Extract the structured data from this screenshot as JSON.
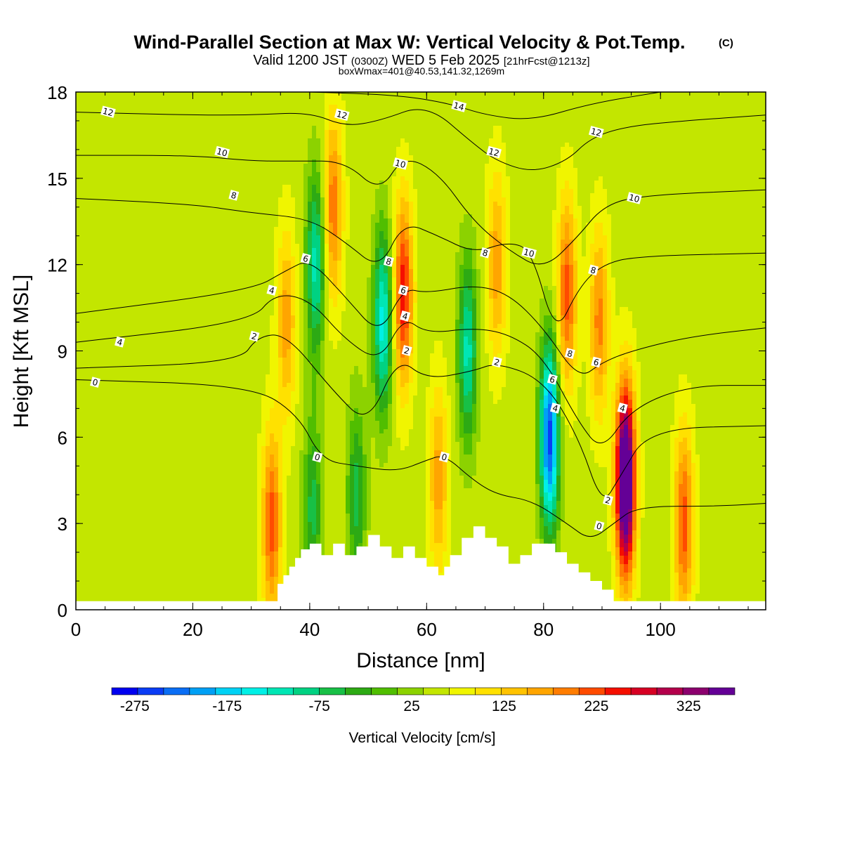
{
  "title": {
    "main": "Wind-Parallel Section at Max W: Vertical Velocity & Pot.Temp.",
    "copyright": "(C)",
    "valid_prefix": "Valid 1200 JST",
    "valid_utc": "(0300Z)",
    "valid_date": "WED 5 Feb 2025",
    "forecast": "[21hrFcst@1213z]",
    "box": "boxWmax=401@40.53,141.32,1269m"
  },
  "colors": {
    "palette": [
      "#0000f0",
      "#0a3cf5",
      "#0a6ef5",
      "#00a0f5",
      "#00d2f5",
      "#00f0e6",
      "#00e6b4",
      "#00d282",
      "#18c046",
      "#2daa14",
      "#50be00",
      "#8cd200",
      "#c3e600",
      "#f0f500",
      "#ffe100",
      "#ffc300",
      "#ffa500",
      "#ff7d00",
      "#ff4b00",
      "#f50f00",
      "#d70023",
      "#b4004b",
      "#8c006e",
      "#640096"
    ],
    "contour_line": "#000000"
  },
  "chart_data": {
    "type": "heatmap",
    "xlabel": "Distance [nm]",
    "ylabel": "Height [Kft MSL]",
    "xlim": [
      0,
      118
    ],
    "ylim": [
      0,
      18
    ],
    "x_ticks": [
      "0",
      "20",
      "40",
      "60",
      "80",
      "100"
    ],
    "y_ticks": [
      "0",
      "3",
      "6",
      "9",
      "12",
      "15",
      "18"
    ],
    "colorbar": {
      "label": "Vertical Velocity [cm/s]",
      "tick_labels": [
        "-275",
        "-175",
        "-75",
        "25",
        "125",
        "225",
        "325"
      ],
      "min": -300,
      "max": 375,
      "step": 25
    },
    "vertical_velocity_features": [
      {
        "x": 33.5,
        "z": 3.0,
        "w": 150
      },
      {
        "x": 36,
        "z": 10,
        "w": 100
      },
      {
        "x": 40.5,
        "z": 3.5,
        "w": -100
      },
      {
        "x": 41,
        "z": 12,
        "w": -150
      },
      {
        "x": 44,
        "z": 14,
        "w": 130
      },
      {
        "x": 48,
        "z": 4,
        "w": -100
      },
      {
        "x": 52.5,
        "z": 10,
        "w": -175
      },
      {
        "x": 56,
        "z": 11,
        "w": 180
      },
      {
        "x": 62,
        "z": 4.5,
        "w": 100
      },
      {
        "x": 67,
        "z": 9,
        "w": -150
      },
      {
        "x": 72,
        "z": 12,
        "w": 100
      },
      {
        "x": 81,
        "z": 6,
        "w": -275
      },
      {
        "x": 84,
        "z": 11,
        "w": 150
      },
      {
        "x": 89.5,
        "z": 10,
        "w": 120
      },
      {
        "x": 94,
        "z": 4.5,
        "w": 375
      },
      {
        "x": 104,
        "z": 3,
        "w": 150
      }
    ],
    "terrain": {
      "x": [
        0,
        33.5,
        34.5,
        35.5,
        36.5,
        37.5,
        38.5,
        40,
        42,
        44,
        46,
        48,
        50,
        52,
        54,
        56,
        58,
        60,
        62,
        63,
        64,
        66,
        68,
        70,
        72,
        74,
        76,
        78,
        80,
        82,
        84,
        86,
        88,
        90,
        92,
        118
      ],
      "z": [
        0.3,
        0.3,
        0.9,
        1.2,
        1.5,
        1.8,
        2.1,
        2.3,
        1.9,
        2.3,
        1.9,
        2.2,
        2.6,
        2.2,
        1.8,
        2.2,
        1.8,
        1.5,
        1.2,
        1.5,
        1.9,
        2.5,
        2.9,
        2.5,
        2.2,
        1.6,
        1.9,
        2.3,
        2.3,
        2.0,
        1.6,
        1.3,
        1.0,
        0.7,
        0.3,
        0.3
      ]
    },
    "potential_temperature_contours": [
      {
        "value": "0",
        "points": [
          [
            0,
            8.0
          ],
          [
            30,
            7.8
          ],
          [
            38,
            6.8
          ],
          [
            42,
            5.2
          ],
          [
            48,
            5.0
          ],
          [
            55,
            4.8
          ],
          [
            60,
            5.2
          ],
          [
            63,
            5.4
          ],
          [
            68,
            4.5
          ],
          [
            72,
            4.0
          ],
          [
            78,
            3.8
          ],
          [
            84,
            3.0
          ],
          [
            88,
            2.4
          ],
          [
            92,
            3.0
          ],
          [
            96,
            3.6
          ],
          [
            110,
            3.6
          ],
          [
            118,
            3.7
          ]
        ]
      },
      {
        "value": "2",
        "points": [
          [
            0,
            8.4
          ],
          [
            28,
            8.6
          ],
          [
            31,
            9.5
          ],
          [
            36,
            9.6
          ],
          [
            44,
            7.6
          ],
          [
            50,
            6.4
          ],
          [
            55,
            8.8
          ],
          [
            60,
            8.0
          ],
          [
            68,
            8.3
          ],
          [
            72,
            8.6
          ],
          [
            80,
            8.0
          ],
          [
            86,
            6.0
          ],
          [
            90,
            3.6
          ],
          [
            93,
            4.6
          ],
          [
            98,
            6.3
          ],
          [
            118,
            6.4
          ]
        ]
      },
      {
        "value": "4",
        "points": [
          [
            0,
            9.3
          ],
          [
            30,
            10.0
          ],
          [
            34,
            11.0
          ],
          [
            40,
            10.8
          ],
          [
            46,
            9.4
          ],
          [
            52,
            8.6
          ],
          [
            56,
            10.2
          ],
          [
            60,
            9.6
          ],
          [
            68,
            9.8
          ],
          [
            74,
            9.6
          ],
          [
            80,
            8.8
          ],
          [
            86,
            6.5
          ],
          [
            90,
            5.5
          ],
          [
            95,
            7.0
          ],
          [
            105,
            7.8
          ],
          [
            118,
            7.8
          ]
        ]
      },
      {
        "value": "6",
        "points": [
          [
            0,
            10.3
          ],
          [
            30,
            11.1
          ],
          [
            36,
            11.8
          ],
          [
            40,
            12.2
          ],
          [
            46,
            10.9
          ],
          [
            52,
            9.5
          ],
          [
            56,
            11.2
          ],
          [
            60,
            11.0
          ],
          [
            68,
            11.3
          ],
          [
            74,
            11.0
          ],
          [
            80,
            9.8
          ],
          [
            86,
            8.0
          ],
          [
            90,
            8.6
          ],
          [
            95,
            9.0
          ],
          [
            105,
            9.5
          ],
          [
            118,
            9.8
          ]
        ]
      },
      {
        "value": "8",
        "points": [
          [
            0,
            14.3
          ],
          [
            20,
            14.1
          ],
          [
            30,
            13.8
          ],
          [
            40,
            13.6
          ],
          [
            46,
            12.8
          ],
          [
            52,
            11.8
          ],
          [
            56,
            13.5
          ],
          [
            62,
            13.0
          ],
          [
            68,
            12.4
          ],
          [
            74,
            12.8
          ],
          [
            78,
            12.5
          ],
          [
            82,
            9.5
          ],
          [
            86,
            11.2
          ],
          [
            90,
            12.0
          ],
          [
            96,
            12.3
          ],
          [
            118,
            12.4
          ]
        ]
      },
      {
        "value": "10",
        "points": [
          [
            0,
            15.8
          ],
          [
            20,
            15.8
          ],
          [
            30,
            15.6
          ],
          [
            38,
            15.6
          ],
          [
            46,
            15.6
          ],
          [
            52,
            14.5
          ],
          [
            56,
            15.8
          ],
          [
            62,
            15.2
          ],
          [
            68,
            13.5
          ],
          [
            74,
            12.5
          ],
          [
            80,
            11.8
          ],
          [
            86,
            13.0
          ],
          [
            90,
            14.0
          ],
          [
            96,
            14.4
          ],
          [
            118,
            14.6
          ]
        ]
      },
      {
        "value": "12",
        "points": [
          [
            0,
            17.3
          ],
          [
            20,
            17.2
          ],
          [
            30,
            17.2
          ],
          [
            40,
            17.3
          ],
          [
            46,
            16.8
          ],
          [
            52,
            17.0
          ],
          [
            60,
            17.6
          ],
          [
            68,
            16.2
          ],
          [
            72,
            15.6
          ],
          [
            78,
            15.2
          ],
          [
            84,
            15.6
          ],
          [
            88,
            16.4
          ],
          [
            94,
            16.8
          ],
          [
            104,
            17.0
          ],
          [
            118,
            17.2
          ]
        ]
      },
      {
        "value": "14",
        "points": [
          [
            40,
            18.0
          ],
          [
            55,
            17.9
          ],
          [
            64,
            17.6
          ],
          [
            70,
            17.2
          ],
          [
            78,
            17.0
          ],
          [
            88,
            17.6
          ],
          [
            100,
            18.0
          ]
        ]
      }
    ],
    "contour_labels": [
      {
        "text": "12",
        "x": 5.5,
        "z": 17.3
      },
      {
        "text": "10",
        "x": 25,
        "z": 15.9
      },
      {
        "text": "8",
        "x": 27,
        "z": 14.4
      },
      {
        "text": "4",
        "x": 7.5,
        "z": 9.3
      },
      {
        "text": "0",
        "x": 3.3,
        "z": 7.9
      },
      {
        "text": "2",
        "x": 30.5,
        "z": 9.5
      },
      {
        "text": "4",
        "x": 33.5,
        "z": 11.1
      },
      {
        "text": "6",
        "x": 39.3,
        "z": 12.2
      },
      {
        "text": "0",
        "x": 41.3,
        "z": 5.3
      },
      {
        "text": "12",
        "x": 45.5,
        "z": 17.2
      },
      {
        "text": "10",
        "x": 55.5,
        "z": 15.5
      },
      {
        "text": "8",
        "x": 53.5,
        "z": 12.1
      },
      {
        "text": "6",
        "x": 56,
        "z": 11.1
      },
      {
        "text": "4",
        "x": 56.3,
        "z": 10.2
      },
      {
        "text": "2",
        "x": 56.6,
        "z": 9.0
      },
      {
        "text": "0",
        "x": 63,
        "z": 5.3
      },
      {
        "text": "14",
        "x": 65.5,
        "z": 17.5
      },
      {
        "text": "12",
        "x": 71.5,
        "z": 15.9
      },
      {
        "text": "8",
        "x": 70,
        "z": 12.4
      },
      {
        "text": "10",
        "x": 77.5,
        "z": 12.4
      },
      {
        "text": "2",
        "x": 72,
        "z": 8.6
      },
      {
        "text": "6",
        "x": 81.5,
        "z": 8.0
      },
      {
        "text": "4",
        "x": 82,
        "z": 7.0
      },
      {
        "text": "8",
        "x": 84.5,
        "z": 8.9
      },
      {
        "text": "12",
        "x": 89,
        "z": 16.6
      },
      {
        "text": "8",
        "x": 88.5,
        "z": 11.8
      },
      {
        "text": "6",
        "x": 89,
        "z": 8.6
      },
      {
        "text": "10",
        "x": 95.5,
        "z": 14.3
      },
      {
        "text": "4",
        "x": 93.5,
        "z": 7.0
      },
      {
        "text": "2",
        "x": 91,
        "z": 3.8
      },
      {
        "text": "0",
        "x": 89.5,
        "z": 2.9
      }
    ]
  }
}
